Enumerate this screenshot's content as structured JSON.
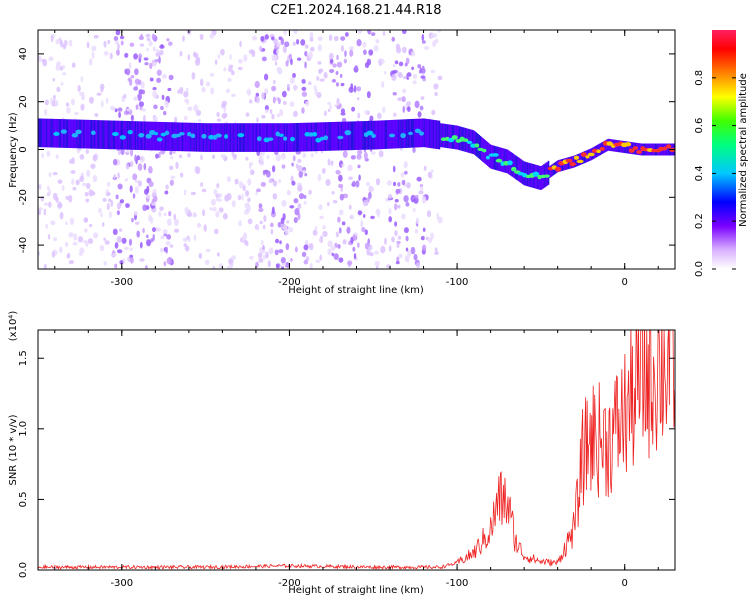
{
  "title": "C2E1.2024.168.21.44.R18",
  "chart_data": [
    {
      "type": "heatmap",
      "xlabel": "Height of straight line (km)",
      "ylabel": "Frequency (Hz)",
      "xlim": [
        -350,
        30
      ],
      "ylim": [
        -50,
        50
      ],
      "xticks": [
        -300,
        -200,
        -100,
        0
      ],
      "yticks": [
        -40,
        -20,
        0,
        20,
        40
      ],
      "colorbar": {
        "label": "Normalized spectral amplitude",
        "range": [
          0.0,
          1.0
        ],
        "ticks": [
          0.0,
          0.2,
          0.4,
          0.6,
          0.8
        ]
      },
      "ridge": [
        {
          "x": -350,
          "y": 7
        },
        {
          "x": -300,
          "y": 6
        },
        {
          "x": -250,
          "y": 5
        },
        {
          "x": -200,
          "y": 5
        },
        {
          "x": -150,
          "y": 6
        },
        {
          "x": -120,
          "y": 7
        },
        {
          "x": -100,
          "y": 5
        },
        {
          "x": -90,
          "y": 3
        },
        {
          "x": -80,
          "y": -3
        },
        {
          "x": -70,
          "y": -5
        },
        {
          "x": -60,
          "y": -10
        },
        {
          "x": -50,
          "y": -12
        },
        {
          "x": -40,
          "y": -7
        },
        {
          "x": -30,
          "y": -5
        },
        {
          "x": -20,
          "y": -2
        },
        {
          "x": -10,
          "y": 2
        },
        {
          "x": 0,
          "y": 1
        },
        {
          "x": 10,
          "y": 0
        },
        {
          "x": 20,
          "y": 0
        },
        {
          "x": 30,
          "y": 0
        }
      ],
      "noise_bands": [
        [
          -305,
          -270
        ],
        [
          -220,
          -190
        ],
        [
          -175,
          -150
        ],
        [
          -140,
          -118
        ]
      ],
      "noise_xlim": [
        -350,
        -110
      ]
    },
    {
      "type": "line",
      "xlabel": "Height of straight line (km)",
      "ylabel": "SNR (10 * v/v)",
      "y_multiplier": "(x10⁴)",
      "xlim": [
        -350,
        30
      ],
      "ylim": [
        0,
        1.7
      ],
      "xticks": [
        -300,
        -200,
        -100,
        0
      ],
      "yticks": [
        0.0,
        0.5,
        1.0,
        1.5
      ],
      "series": [
        {
          "color": "#ee2222",
          "x": [
            -350,
            -300,
            -250,
            -200,
            -150,
            -110,
            -100,
            -90,
            -80,
            -75,
            -70,
            -65,
            -60,
            -50,
            -40,
            -30,
            -25,
            -20,
            -10,
            0,
            10,
            20,
            30
          ],
          "y": [
            0.02,
            0.02,
            0.02,
            0.03,
            0.02,
            0.02,
            0.05,
            0.12,
            0.28,
            0.5,
            0.48,
            0.2,
            0.1,
            0.06,
            0.05,
            0.3,
            0.8,
            0.95,
            0.9,
            1.1,
            1.35,
            1.45,
            1.5
          ]
        }
      ]
    }
  ]
}
